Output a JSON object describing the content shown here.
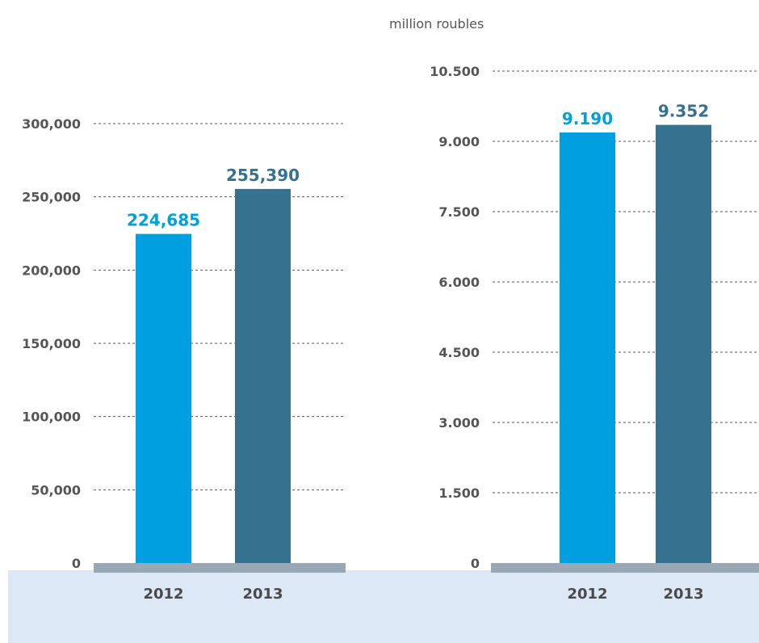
{
  "unit_label": "million roubles",
  "colors": {
    "bar_2012": "#009fdf",
    "bar_2013": "#36728f",
    "baseline": "#9aa8b6",
    "band": "#dce8f5",
    "grid": "#555555"
  },
  "chart_data": [
    {
      "type": "bar",
      "categories": [
        "2012",
        "2013"
      ],
      "values": [
        224685,
        255390
      ],
      "value_labels": [
        "224,685",
        "255,390"
      ],
      "yticks": [
        "0",
        "50,000",
        "100,000",
        "150,000",
        "200,000",
        "250,000",
        "300,000"
      ],
      "ytick_values": [
        0,
        50000,
        100000,
        150000,
        200000,
        250000,
        300000
      ],
      "ylim": [
        0,
        300000
      ],
      "grid": true,
      "title": "",
      "xlabel": "",
      "ylabel": ""
    },
    {
      "type": "bar",
      "categories": [
        "2012",
        "2013"
      ],
      "values": [
        9190,
        9352
      ],
      "value_labels": [
        "9.190",
        "9.352"
      ],
      "yticks": [
        "0",
        "1.500",
        "3.000",
        "4.500",
        "6.000",
        "7.500",
        "9.000",
        "10.500"
      ],
      "ytick_values": [
        0,
        1500,
        3000,
        4500,
        6000,
        7500,
        9000,
        10500
      ],
      "ylim": [
        0,
        10500
      ],
      "grid": true,
      "title": "",
      "xlabel": "",
      "ylabel": "million roubles"
    }
  ]
}
